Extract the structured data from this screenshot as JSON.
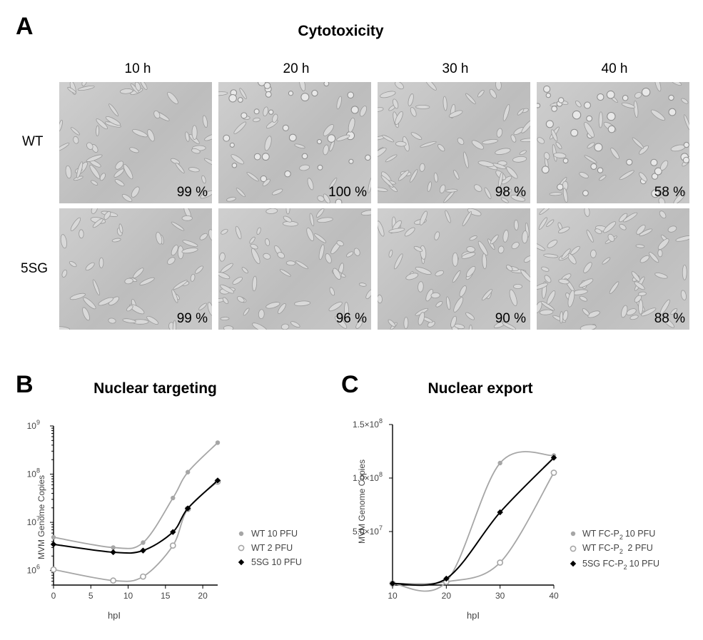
{
  "panelA": {
    "letter": "A",
    "title": "Cytotoxicity",
    "columns": [
      "10 h",
      "20 h",
      "30 h",
      "40 h"
    ],
    "rows": [
      {
        "label": "WT",
        "values": [
          "99 %",
          "100 %",
          "98 %",
          "58 %"
        ]
      },
      {
        "label": "5SG",
        "values": [
          "99 %",
          "96 %",
          "90 %",
          "88 %"
        ]
      }
    ]
  },
  "panelB": {
    "letter": "B",
    "title": "Nuclear targeting",
    "ylabel": "MVM Genome Copies",
    "xlabel": "hpI",
    "legend": [
      "WT  10 PFU",
      "WT    2 PFU",
      "5SG 10 PFU"
    ]
  },
  "panelC": {
    "letter": "C",
    "title": "Nuclear export",
    "ylabel": "MVM Genome Copies",
    "xlabel": "hpI",
    "legend": [
      "WT  FC-P",
      "WT  FC-P",
      "5SG FC-P"
    ],
    "legend_suffix": [
      "10 PFU",
      "  2 PFU",
      "10 PFU"
    ],
    "legend_sub": "2"
  },
  "chart_data": [
    {
      "type": "line",
      "title": "Nuclear targeting",
      "xlabel": "hpI",
      "ylabel": "MVM Genome Copies",
      "yscale": "log",
      "xlim": [
        0,
        22
      ],
      "ylim": [
        500000,
        1000000000
      ],
      "xticks": [
        "0",
        "5",
        "10",
        "15",
        "20"
      ],
      "yticks": [
        "10^6",
        "10^7",
        "10^8",
        "10^9"
      ],
      "legend_position": "right",
      "series": [
        {
          "name": "WT  10 PFU",
          "color": "#a6a6a6",
          "marker": "filled-circle",
          "x": [
            0,
            8,
            12,
            16,
            18,
            22
          ],
          "y": [
            4900000,
            3000000,
            3800000,
            32000000,
            110000000,
            450000000
          ]
        },
        {
          "name": "WT    2 PFU",
          "color": "#a6a6a6",
          "marker": "open-circle",
          "x": [
            0,
            8,
            12,
            16,
            18,
            22
          ],
          "y": [
            1050000,
            620000,
            750000,
            3300000,
            19000000,
            70000000
          ]
        },
        {
          "name": "5SG 10 PFU",
          "color": "#000000",
          "marker": "filled-diamond",
          "x": [
            0,
            8,
            12,
            16,
            18,
            22
          ],
          "y": [
            3500000,
            2400000,
            2600000,
            6300000,
            19500000,
            74000000
          ]
        }
      ]
    },
    {
      "type": "line",
      "title": "Nuclear export",
      "xlabel": "hpI",
      "ylabel": "MVM Genome Copies",
      "xlim": [
        10,
        40
      ],
      "ylim": [
        0,
        150000000
      ],
      "xticks": [
        "10",
        "20",
        "30",
        "40"
      ],
      "yticks": [
        "5.0×10^7",
        "1.0×10^8",
        "1.5×10^8"
      ],
      "legend_position": "right",
      "series": [
        {
          "name": "WT  FC-P2 10 PFU",
          "color": "#a6a6a6",
          "marker": "filled-circle",
          "x": [
            10,
            20,
            30,
            40
          ],
          "y": [
            1500000,
            3000000,
            114000000,
            121000000
          ]
        },
        {
          "name": "WT  FC-P2  2 PFU",
          "color": "#a6a6a6",
          "marker": "open-circle",
          "x": [
            10,
            20,
            30,
            40
          ],
          "y": [
            1500000,
            3000000,
            21000000,
            105000000
          ]
        },
        {
          "name": "5SG FC-P2 10 PFU",
          "color": "#000000",
          "marker": "filled-diamond",
          "x": [
            10,
            20,
            30,
            40
          ],
          "y": [
            1500000,
            6000000,
            68000000,
            119000000
          ]
        }
      ]
    }
  ]
}
